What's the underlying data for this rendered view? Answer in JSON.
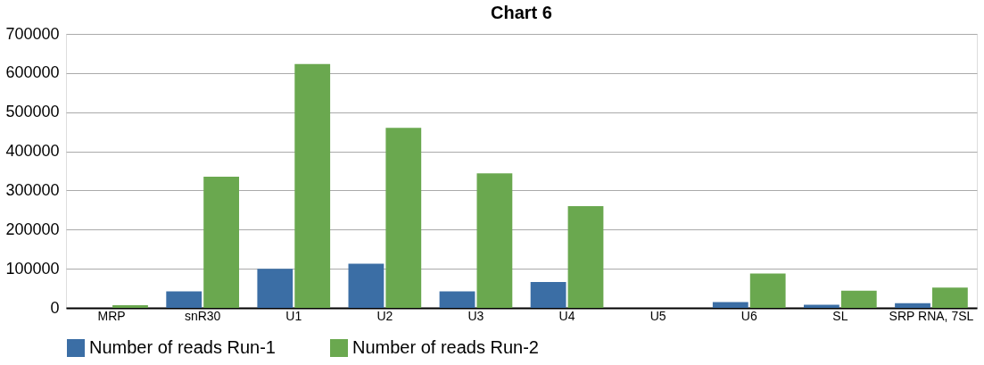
{
  "chart_data": {
    "type": "bar",
    "title": "Chart 6",
    "categories": [
      "MRP",
      "snR30",
      "U1",
      "U2",
      "U3",
      "U4",
      "U5",
      "U6",
      "SL",
      "SRP RNA, 7SL"
    ],
    "series": [
      {
        "name": "Number of reads Run-1",
        "color": "#3b6ea5",
        "values": [
          null,
          42000,
          100000,
          113000,
          42000,
          66000,
          null,
          15000,
          8000,
          12000
        ]
      },
      {
        "name": "Number of reads Run-2",
        "color": "#6aa84f",
        "values": [
          7000,
          335000,
          623000,
          460000,
          344000,
          260000,
          null,
          88000,
          44000,
          52000
        ]
      }
    ],
    "ylim": [
      0,
      700000
    ],
    "yticks": [
      0,
      100000,
      200000,
      300000,
      400000,
      500000,
      600000,
      700000
    ],
    "grid": "y",
    "legend": "bottom"
  }
}
